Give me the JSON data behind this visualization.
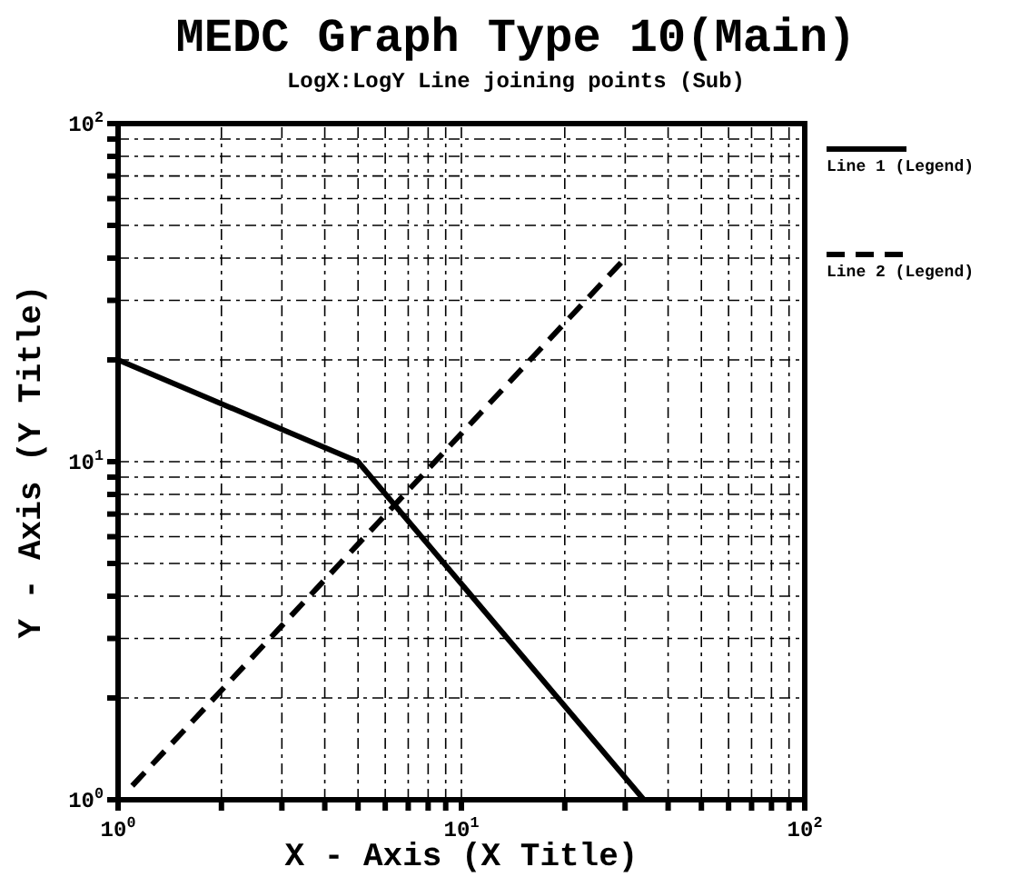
{
  "chart_data": {
    "type": "line",
    "title": "MEDC Graph Type 10(Main)",
    "subtitle": "LogX:LogY Line joining points (Sub)",
    "xlabel": "X - Axis (X Title)",
    "ylabel": "Y - Axis (Y Title)",
    "log": "xy",
    "grid": true,
    "legend": "right",
    "xlim": [
      1,
      100
    ],
    "ylim": [
      1,
      100
    ],
    "xticks": [
      {
        "value": 1,
        "label": "10$^{0}$"
      },
      {
        "value": 2,
        "label": null
      },
      {
        "value": 3,
        "label": null
      },
      {
        "value": 4,
        "label": null
      },
      {
        "value": 5,
        "label": null
      },
      {
        "value": 6,
        "label": null
      },
      {
        "value": 7,
        "label": null
      },
      {
        "value": 8,
        "label": null
      },
      {
        "value": 9,
        "label": null
      },
      {
        "value": 10,
        "label": "10$^{1}$"
      },
      {
        "value": 20,
        "label": null
      },
      {
        "value": 30,
        "label": null
      },
      {
        "value": 40,
        "label": null
      },
      {
        "value": 50,
        "label": null
      },
      {
        "value": 60,
        "label": null
      },
      {
        "value": 70,
        "label": null
      },
      {
        "value": 80,
        "label": null
      },
      {
        "value": 90,
        "label": null
      },
      {
        "value": 100,
        "label": "10$^{2}$"
      }
    ],
    "yticks": [
      {
        "value": 1,
        "label": "10$^{0}$"
      },
      {
        "value": 2,
        "label": null
      },
      {
        "value": 3,
        "label": null
      },
      {
        "value": 4,
        "label": null
      },
      {
        "value": 5,
        "label": null
      },
      {
        "value": 6,
        "label": null
      },
      {
        "value": 7,
        "label": null
      },
      {
        "value": 8,
        "label": null
      },
      {
        "value": 9,
        "label": null
      },
      {
        "value": 10,
        "label": "10$^{1}$"
      },
      {
        "value": 20,
        "label": null
      },
      {
        "value": 30,
        "label": null
      },
      {
        "value": 40,
        "label": null
      },
      {
        "value": 50,
        "label": null
      },
      {
        "value": 60,
        "label": null
      },
      {
        "value": 70,
        "label": null
      },
      {
        "value": 80,
        "label": null
      },
      {
        "value": 90,
        "label": null
      },
      {
        "value": 100,
        "label": "10$^{2}$"
      }
    ],
    "series": [
      {
        "name": "Line 1 (Legend)",
        "color": "#000000",
        "line_style": "solid",
        "x": [
          1,
          5,
          34
        ],
        "values": [
          20,
          10,
          1
        ]
      },
      {
        "name": "Line 2 (Legend)",
        "color": "#000000",
        "line_style": "dashed",
        "x": [
          1.1,
          30
        ],
        "values": [
          1.1,
          40
        ]
      }
    ]
  }
}
